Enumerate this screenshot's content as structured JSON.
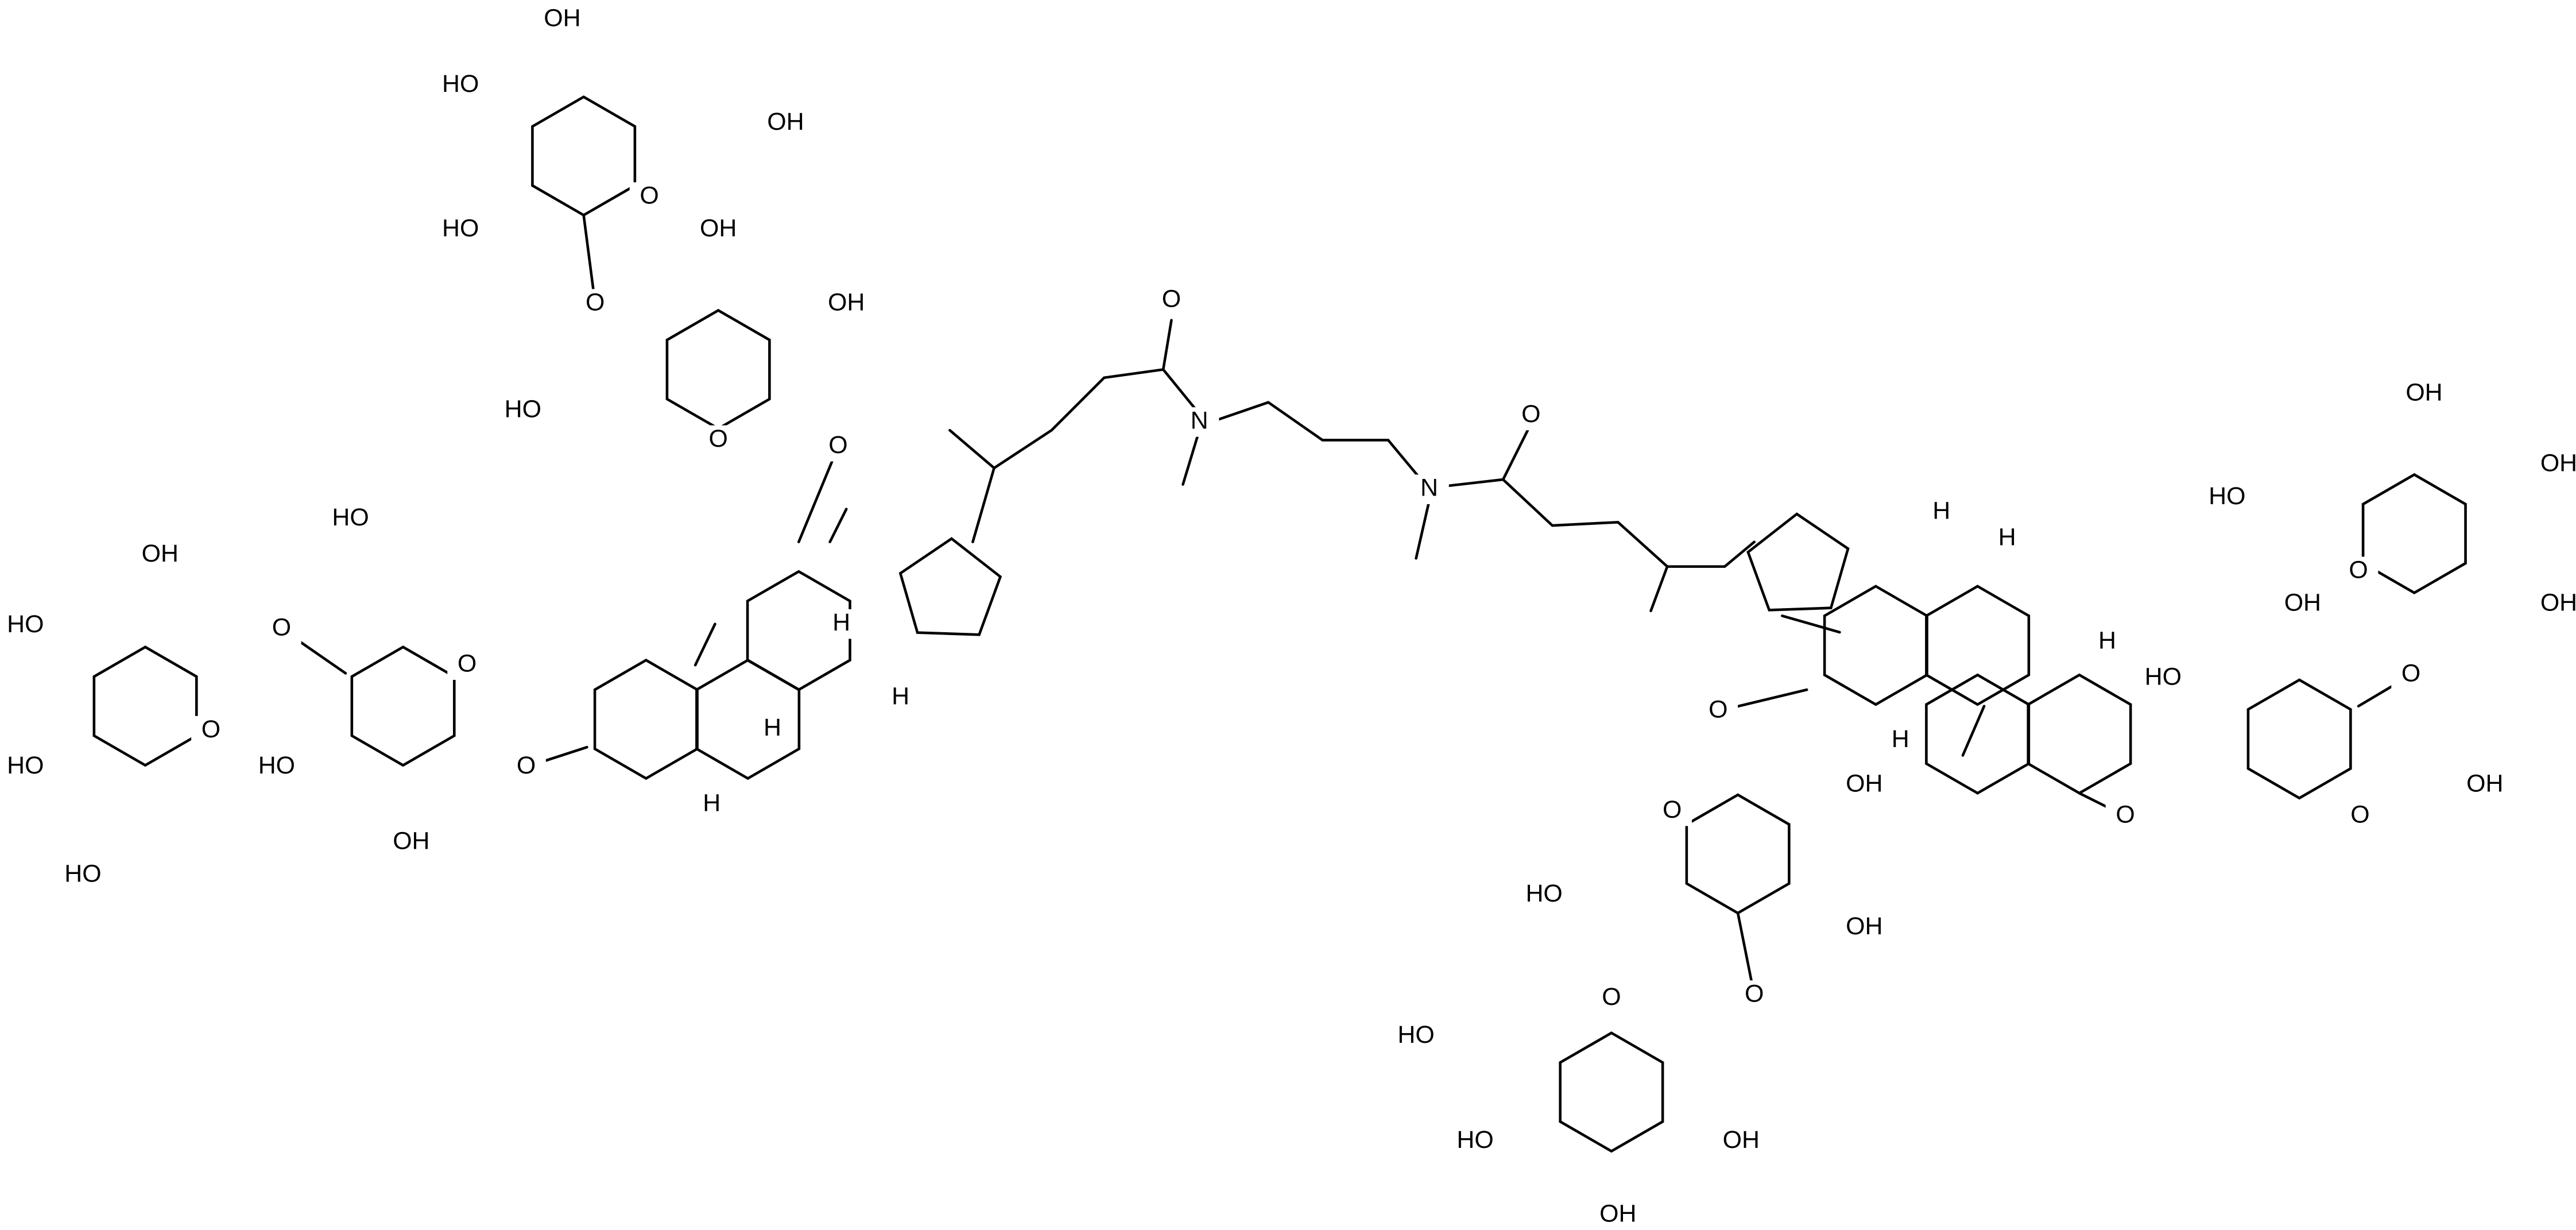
{
  "atoms": [
    "OH",
    "HO",
    "OH",
    "O",
    "HO",
    "O",
    "OH",
    "OH",
    "HO",
    "O",
    "O",
    "OH",
    "HO",
    "O",
    "HO",
    "O",
    "O",
    "HO",
    "HO",
    "O",
    "OH",
    "HO",
    "H",
    "H",
    "H",
    "H",
    "O",
    "N",
    "N",
    "O",
    "H",
    "H",
    "H",
    "H",
    "O",
    "OH",
    "HO",
    "OH",
    "O",
    "OH",
    "OH",
    "O",
    "HO",
    "O",
    "O",
    "OH",
    "O",
    "OH",
    "HO",
    "OH",
    "O",
    "O",
    "HO",
    "HO",
    "OH",
    "OH"
  ]
}
